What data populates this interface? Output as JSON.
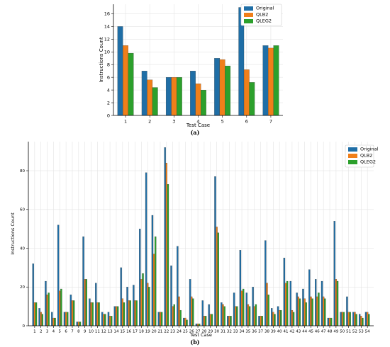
{
  "colors": {
    "Original": "#1f6ea6",
    "QLB2": "#f07f1a",
    "QLEG2": "#2ca02c"
  },
  "chart_data": [
    {
      "type": "bar",
      "panel_label": "(a)",
      "xlabel": "Test Case",
      "ylabel": "Instructions Count",
      "ylim": [
        0,
        17.5
      ],
      "yticks": [
        0,
        2,
        4,
        6,
        8,
        10,
        12,
        14,
        16
      ],
      "grid": true,
      "legend_position": "top-right",
      "categories": [
        "1",
        "2",
        "3",
        "4",
        "5",
        "6",
        "7"
      ],
      "series": [
        {
          "name": "Original",
          "values": [
            14,
            7,
            6,
            7,
            9,
            17,
            11
          ]
        },
        {
          "name": "QLB2",
          "values": [
            11,
            5.6,
            6,
            5,
            8.8,
            7.2,
            10.6
          ]
        },
        {
          "name": "QLEG2",
          "values": [
            9.8,
            4.4,
            6,
            4,
            7.8,
            5.2,
            11
          ]
        }
      ]
    },
    {
      "type": "bar",
      "panel_label": "(b)",
      "xlabel": "Test Case",
      "ylabel": "Instructions Count",
      "ylim": [
        0,
        95
      ],
      "yticks": [
        0,
        20,
        40,
        60,
        80
      ],
      "grid": true,
      "legend_position": "top-right",
      "categories": [
        "1",
        "2",
        "3",
        "4",
        "5",
        "6",
        "7",
        "8",
        "9",
        "10",
        "11",
        "12",
        "13",
        "14",
        "15",
        "16",
        "17",
        "18",
        "19",
        "20",
        "21",
        "22",
        "23",
        "24",
        "25",
        "26",
        "27",
        "28",
        "29",
        "30",
        "31",
        "32",
        "33",
        "34",
        "35",
        "36",
        "37",
        "38",
        "39",
        "40",
        "41",
        "42",
        "43",
        "44",
        "45",
        "46",
        "47",
        "48",
        "49",
        "50",
        "51",
        "52",
        "53",
        "54"
      ],
      "series": [
        {
          "name": "Original",
          "values": [
            32,
            9,
            23,
            7,
            52,
            7,
            16,
            2,
            46,
            14,
            22,
            7,
            7,
            10,
            30,
            20,
            21,
            50,
            79,
            57,
            7,
            92,
            31,
            41,
            4,
            24,
            1,
            13,
            11,
            77,
            12,
            5,
            17,
            39,
            17,
            20,
            5,
            44,
            9,
            10,
            35,
            23,
            17,
            19,
            29,
            24,
            23,
            4,
            54,
            7,
            15,
            7,
            6,
            7
          ]
        },
        {
          "name": "QLB2",
          "values": [
            12,
            7,
            16,
            4,
            18,
            7,
            13,
            2,
            24,
            12,
            12,
            6,
            5,
            10,
            14,
            13,
            13,
            24,
            22,
            37,
            7,
            84,
            10,
            15,
            4,
            15,
            1,
            5,
            6,
            51,
            11,
            5,
            10,
            18,
            11,
            10,
            5,
            22,
            7,
            8,
            22,
            8,
            15,
            14,
            15,
            15,
            15,
            4,
            24,
            7,
            7,
            7,
            5,
            7
          ]
        },
        {
          "name": "QLEG2",
          "values": [
            12,
            6,
            17,
            4,
            19,
            7,
            13,
            2,
            24,
            12,
            12,
            6,
            5,
            10,
            12,
            13,
            13,
            27,
            20,
            46,
            7,
            73,
            11,
            8,
            3,
            14,
            1,
            5,
            6,
            48,
            10,
            5,
            10,
            19,
            10,
            11,
            5,
            16,
            6,
            8,
            23,
            7,
            14,
            12,
            14,
            17,
            14,
            4,
            23,
            7,
            7,
            6,
            4,
            6
          ]
        }
      ]
    }
  ]
}
